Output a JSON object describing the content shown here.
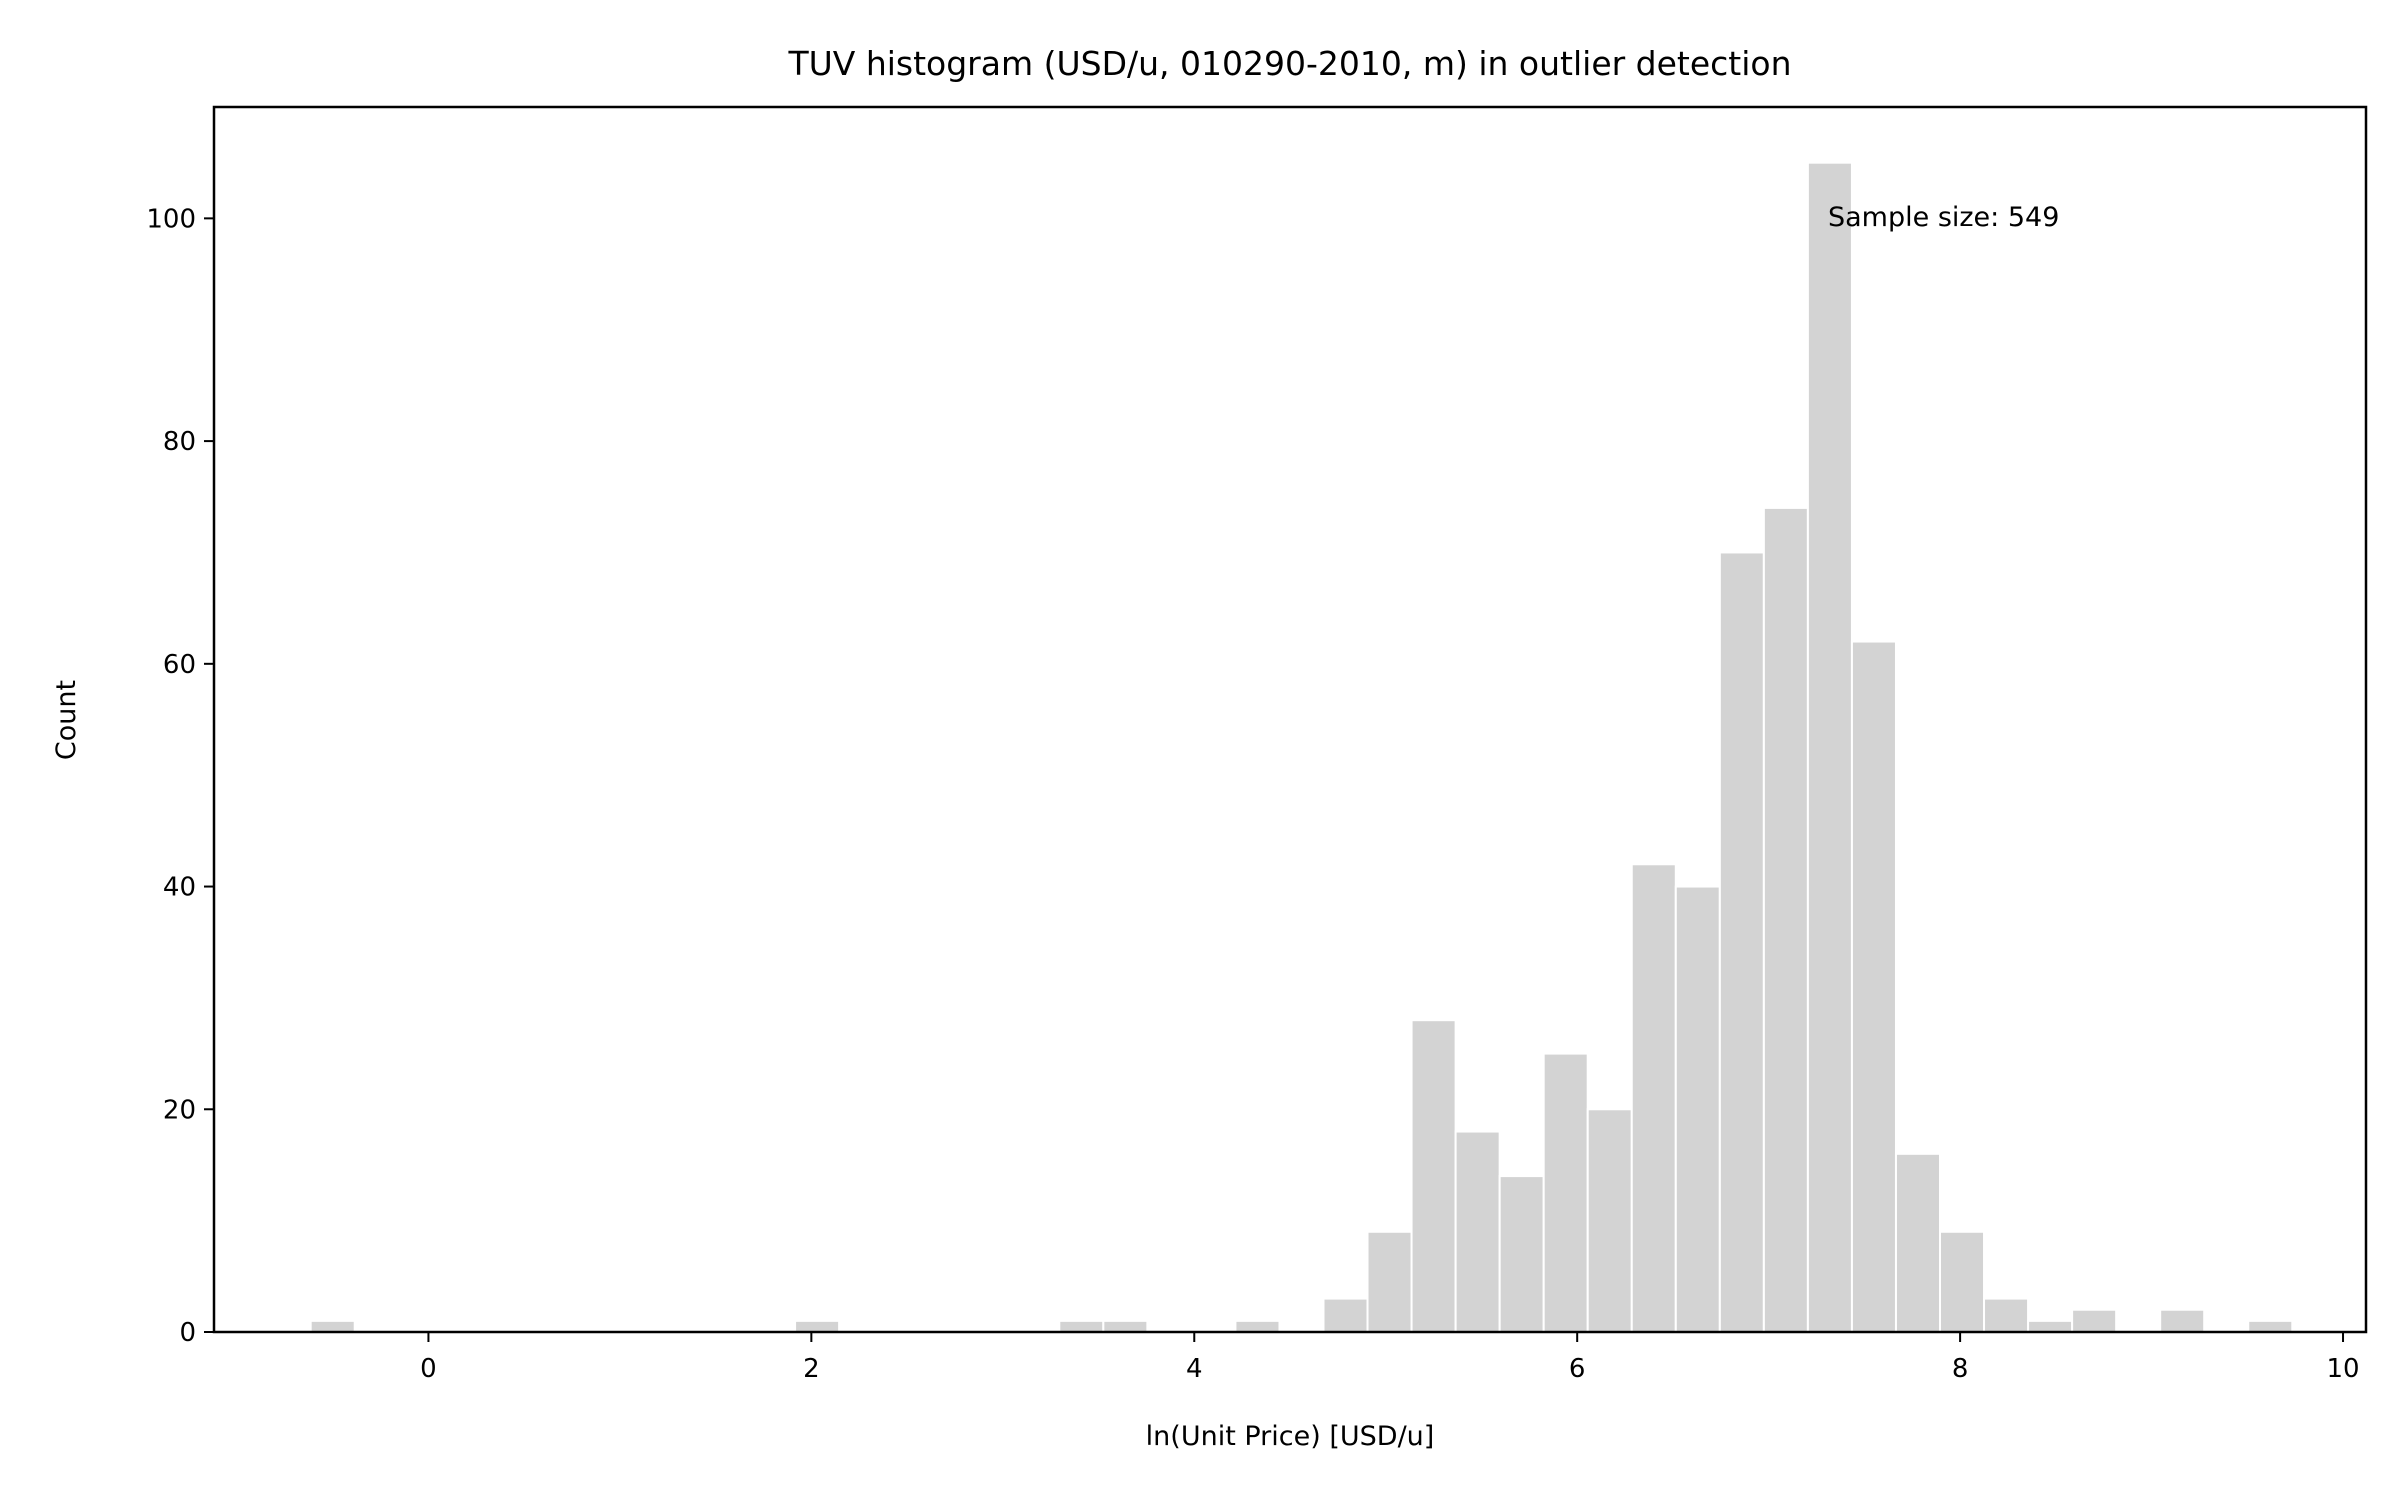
{
  "chart_data": {
    "type": "bar",
    "title": "TUV histogram (USD/u, 010290-2010, m) in outlier detection",
    "xlabel": "ln(Unit Price) [USD/u]",
    "ylabel": "Count",
    "annotation": "Sample size: 549",
    "xlim": [
      -1.12,
      10.12
    ],
    "ylim": [
      0,
      110
    ],
    "bin_width": 0.23,
    "xticks": [
      0,
      2,
      4,
      6,
      8,
      10
    ],
    "yticks": [
      0,
      20,
      40,
      60,
      80,
      100
    ],
    "bars": [
      {
        "x": -0.5,
        "count": 1
      },
      {
        "x": 2.03,
        "count": 1
      },
      {
        "x": 3.41,
        "count": 1
      },
      {
        "x": 3.64,
        "count": 1
      },
      {
        "x": 4.33,
        "count": 1
      },
      {
        "x": 4.79,
        "count": 3
      },
      {
        "x": 5.02,
        "count": 9
      },
      {
        "x": 5.25,
        "count": 28
      },
      {
        "x": 5.48,
        "count": 18
      },
      {
        "x": 5.71,
        "count": 14
      },
      {
        "x": 5.94,
        "count": 25
      },
      {
        "x": 6.17,
        "count": 20
      },
      {
        "x": 6.4,
        "count": 42
      },
      {
        "x": 6.63,
        "count": 40
      },
      {
        "x": 6.86,
        "count": 70
      },
      {
        "x": 7.09,
        "count": 74
      },
      {
        "x": 7.32,
        "count": 105
      },
      {
        "x": 7.55,
        "count": 62
      },
      {
        "x": 7.78,
        "count": 16
      },
      {
        "x": 8.01,
        "count": 9
      },
      {
        "x": 8.24,
        "count": 3
      },
      {
        "x": 8.47,
        "count": 1
      },
      {
        "x": 8.7,
        "count": 2
      },
      {
        "x": 9.16,
        "count": 2
      },
      {
        "x": 9.62,
        "count": 1
      }
    ]
  }
}
